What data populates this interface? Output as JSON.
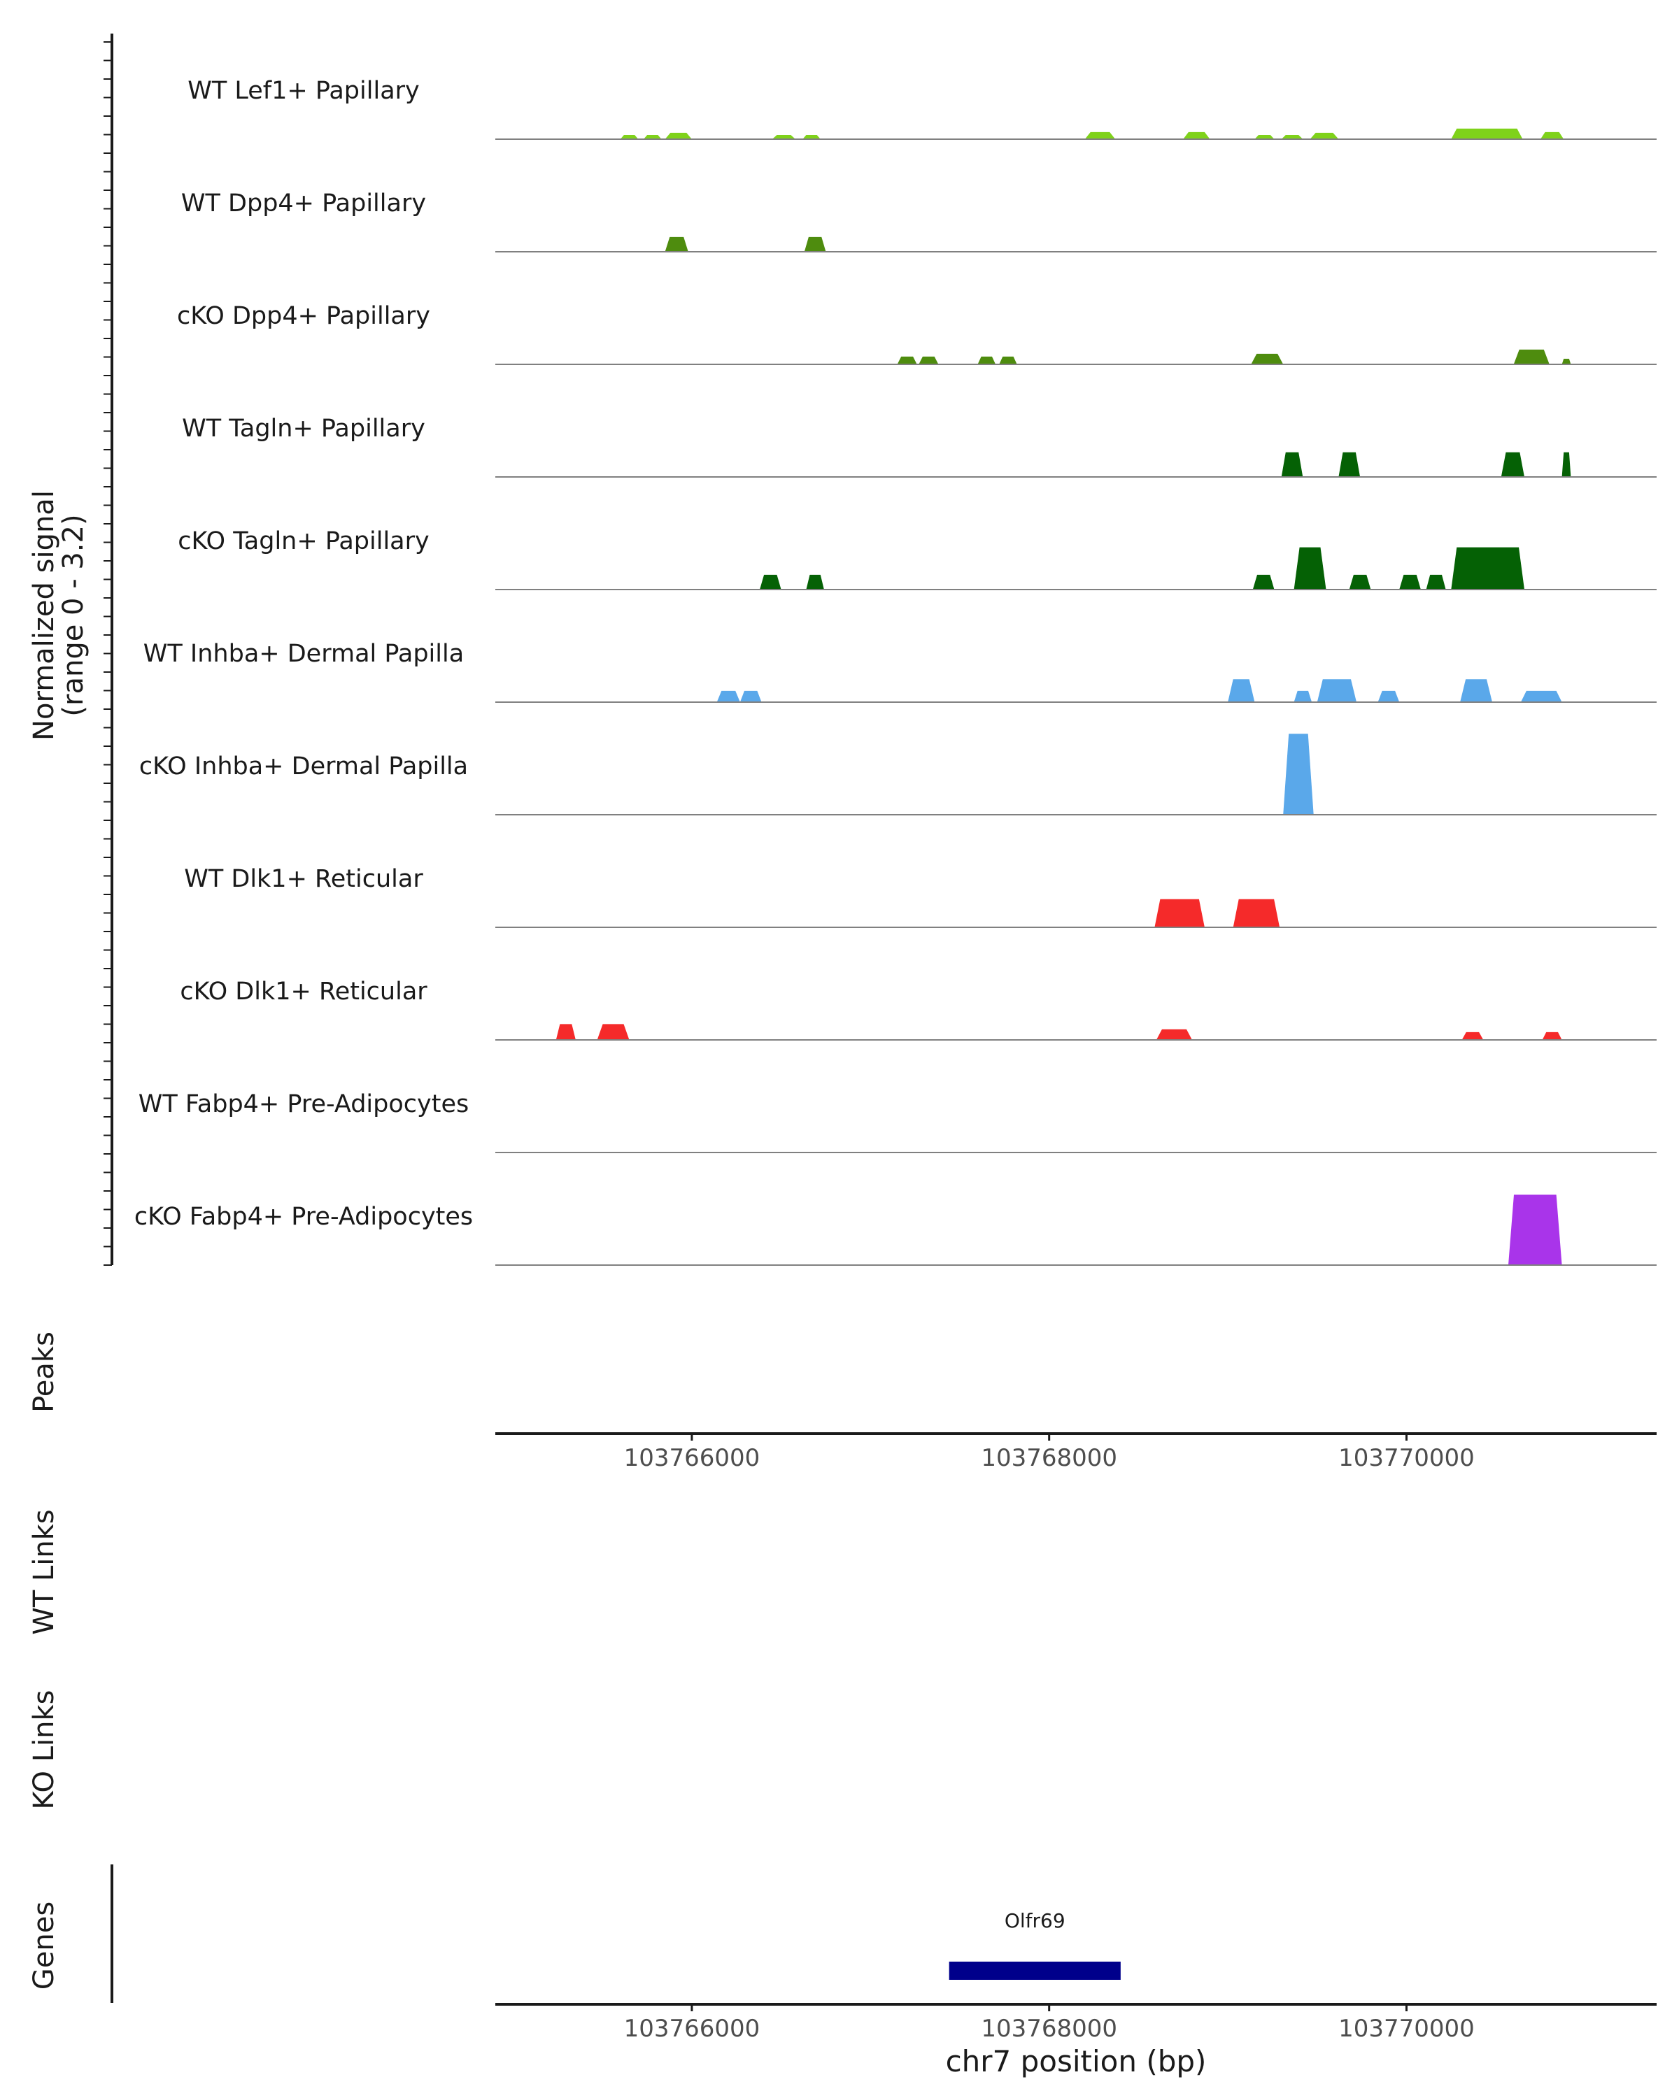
{
  "chart_data": {
    "type": "area",
    "chromosome": "chr7",
    "xlabel": "chr7 position (bp)",
    "xlim": [
      103764900,
      103771400
    ],
    "xticks": [
      103766000,
      103768000,
      103770000
    ],
    "xtick_labels": [
      "103766000",
      "103768000",
      "103770000"
    ],
    "ylabel": "Normalized signal",
    "ylabel_range": "(range 0 - 3.2)",
    "ylim": [
      0,
      3.2
    ],
    "tracks": [
      {
        "name": "WT Lef1+ Papillary",
        "color": "#7fd21a",
        "peaks": [
          {
            "start": 103765600,
            "end": 103765700,
            "height": 0.12
          },
          {
            "start": 103765730,
            "end": 103765830,
            "height": 0.12
          },
          {
            "start": 103765850,
            "end": 103766000,
            "height": 0.18
          },
          {
            "start": 103766450,
            "end": 103766580,
            "height": 0.12
          },
          {
            "start": 103766620,
            "end": 103766720,
            "height": 0.12
          },
          {
            "start": 103768200,
            "end": 103768370,
            "height": 0.2
          },
          {
            "start": 103768750,
            "end": 103768900,
            "height": 0.2
          },
          {
            "start": 103769150,
            "end": 103769260,
            "height": 0.12
          },
          {
            "start": 103769300,
            "end": 103769420,
            "height": 0.12
          },
          {
            "start": 103769460,
            "end": 103769620,
            "height": 0.18
          },
          {
            "start": 103770250,
            "end": 103770650,
            "height": 0.3
          },
          {
            "start": 103770750,
            "end": 103770880,
            "height": 0.2
          }
        ]
      },
      {
        "name": "WT Dpp4+ Papillary",
        "color": "#4e8c0e",
        "peaks": [
          {
            "start": 103765850,
            "end": 103765980,
            "height": 0.42
          },
          {
            "start": 103766630,
            "end": 103766750,
            "height": 0.42
          }
        ]
      },
      {
        "name": "cKO Dpp4+ Papillary",
        "color": "#4e8c0e",
        "peaks": [
          {
            "start": 103767150,
            "end": 103767260,
            "height": 0.22
          },
          {
            "start": 103767270,
            "end": 103767380,
            "height": 0.22
          },
          {
            "start": 103767600,
            "end": 103767700,
            "height": 0.22
          },
          {
            "start": 103767720,
            "end": 103767820,
            "height": 0.22
          },
          {
            "start": 103769130,
            "end": 103769310,
            "height": 0.3
          },
          {
            "start": 103770600,
            "end": 103770800,
            "height": 0.42
          },
          {
            "start": 103770870,
            "end": 103770920,
            "height": 0.16
          }
        ]
      },
      {
        "name": "WT Tagln+ Papillary",
        "color": "#056105",
        "peaks": [
          {
            "start": 103769300,
            "end": 103769420,
            "height": 0.7
          },
          {
            "start": 103769620,
            "end": 103769740,
            "height": 0.7
          },
          {
            "start": 103770530,
            "end": 103770660,
            "height": 0.7
          },
          {
            "start": 103770870,
            "end": 103770920,
            "height": 0.7
          }
        ]
      },
      {
        "name": "cKO Tagln+ Papillary",
        "color": "#056105",
        "peaks": [
          {
            "start": 103766380,
            "end": 103766500,
            "height": 0.42
          },
          {
            "start": 103766640,
            "end": 103766740,
            "height": 0.42
          },
          {
            "start": 103769140,
            "end": 103769260,
            "height": 0.42
          },
          {
            "start": 103769370,
            "end": 103769550,
            "height": 1.2
          },
          {
            "start": 103769680,
            "end": 103769800,
            "height": 0.42
          },
          {
            "start": 103769960,
            "end": 103770080,
            "height": 0.42
          },
          {
            "start": 103770110,
            "end": 103770220,
            "height": 0.42
          },
          {
            "start": 103770250,
            "end": 103770660,
            "height": 1.2
          }
        ]
      },
      {
        "name": "WT Inhba+ Dermal Papilla",
        "color": "#5aa8ea",
        "peaks": [
          {
            "start": 103766140,
            "end": 103766270,
            "height": 0.32
          },
          {
            "start": 103766270,
            "end": 103766390,
            "height": 0.32
          },
          {
            "start": 103769000,
            "end": 103769150,
            "height": 0.65
          },
          {
            "start": 103769370,
            "end": 103769470,
            "height": 0.32
          },
          {
            "start": 103769500,
            "end": 103769720,
            "height": 0.65
          },
          {
            "start": 103769840,
            "end": 103769960,
            "height": 0.32
          },
          {
            "start": 103770300,
            "end": 103770480,
            "height": 0.65
          },
          {
            "start": 103770640,
            "end": 103770870,
            "height": 0.32
          }
        ]
      },
      {
        "name": "cKO Inhba+ Dermal Papilla",
        "color": "#5aa8ea",
        "peaks": [
          {
            "start": 103769310,
            "end": 103769480,
            "height": 2.3
          }
        ]
      },
      {
        "name": "WT Dlk1+ Reticular",
        "color": "#f52a2a",
        "peaks": [
          {
            "start": 103768590,
            "end": 103768870,
            "height": 0.8
          },
          {
            "start": 103769030,
            "end": 103769290,
            "height": 0.8
          }
        ]
      },
      {
        "name": "cKO Dlk1+ Reticular",
        "color": "#f52a2a",
        "peaks": [
          {
            "start": 103765240,
            "end": 103765350,
            "height": 0.45
          },
          {
            "start": 103765470,
            "end": 103765650,
            "height": 0.45
          },
          {
            "start": 103768600,
            "end": 103768800,
            "height": 0.3
          },
          {
            "start": 103770310,
            "end": 103770430,
            "height": 0.22
          },
          {
            "start": 103770760,
            "end": 103770870,
            "height": 0.22
          }
        ]
      },
      {
        "name": "WT Fabp4+ Pre-Adipocytes",
        "color": "#a934ea",
        "peaks": []
      },
      {
        "name": "cKO Fabp4+ Pre-Adipocytes",
        "color": "#a934ea",
        "peaks": [
          {
            "start": 103770570,
            "end": 103770870,
            "height": 2.0
          }
        ]
      }
    ],
    "panels": {
      "peaks_label": "Peaks",
      "wt_links_label": "WT Links",
      "ko_links_label": "KO Links",
      "genes_label": "Genes"
    },
    "genes": [
      {
        "name": "Olfr69",
        "start": 103767440,
        "end": 103768400,
        "color": "#00008b"
      }
    ]
  }
}
